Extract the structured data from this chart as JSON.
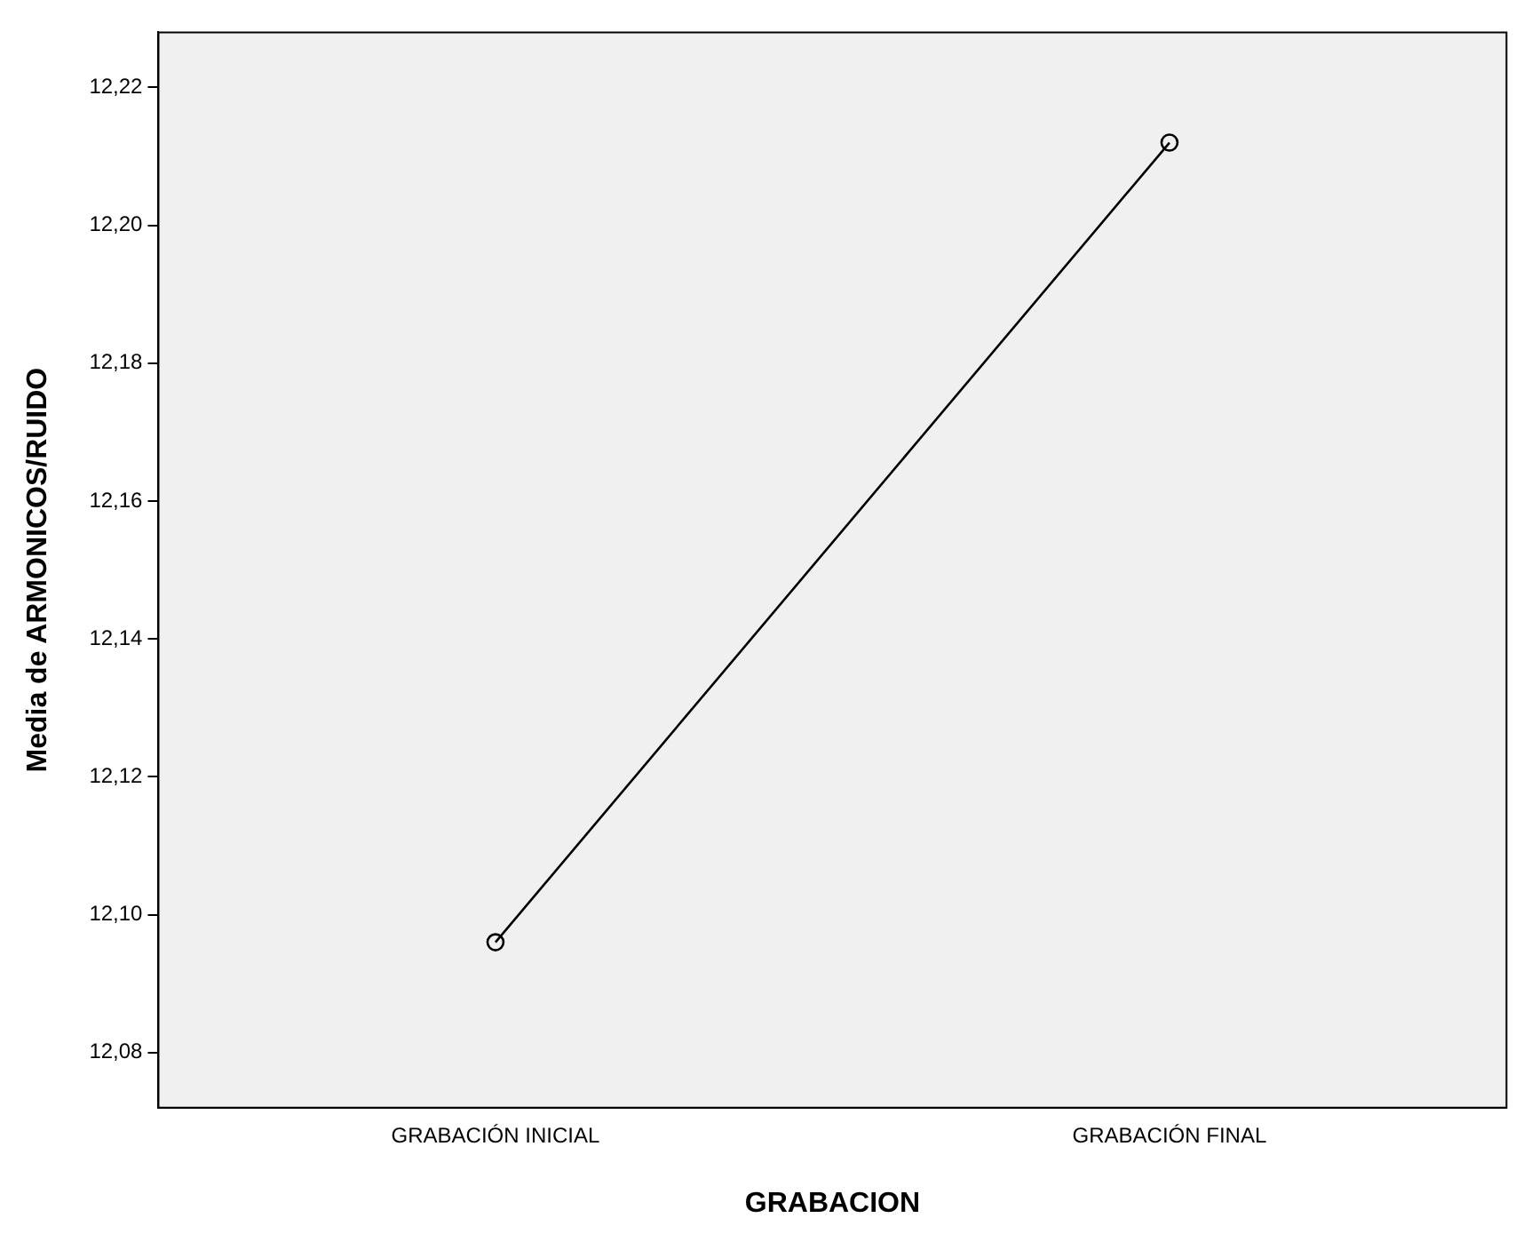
{
  "chart_data": {
    "type": "line",
    "xlabel": "GRABACION",
    "ylabel": "Media de ARMONICOS/RUIDO",
    "categories": [
      "GRABACIÓN INICIAL",
      "GRABACIÓN FINAL"
    ],
    "series": [
      {
        "color": "#000000",
        "values": [
          12.096,
          12.212
        ]
      }
    ],
    "ylim": [
      12.072,
      12.228
    ],
    "yticks": [
      {
        "value": 12.08,
        "label": "12,08"
      },
      {
        "value": 12.1,
        "label": "12,10"
      },
      {
        "value": 12.12,
        "label": "12,12"
      },
      {
        "value": 12.14,
        "label": "12,14"
      },
      {
        "value": 12.16,
        "label": "12,16"
      },
      {
        "value": 12.18,
        "label": "12,18"
      },
      {
        "value": 12.2,
        "label": "12,20"
      },
      {
        "value": 12.22,
        "label": "12,22"
      }
    ],
    "grid": false,
    "legend": false,
    "marker": "circle",
    "line_style": "solid"
  }
}
